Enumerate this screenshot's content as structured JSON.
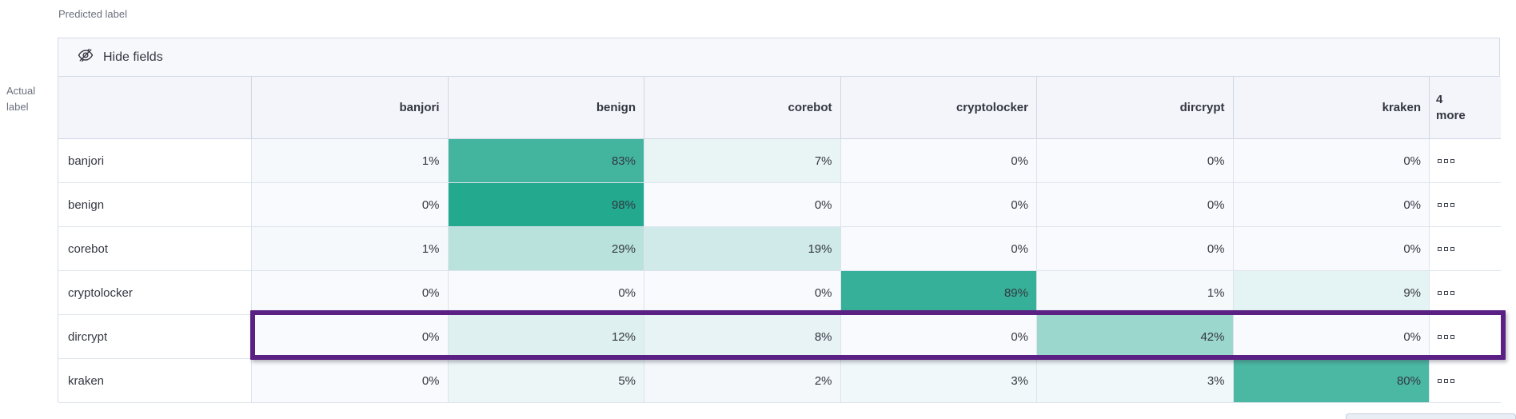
{
  "axis_labels": {
    "predicted": "Predicted label",
    "actual_line1": "Actual",
    "actual_line2": "label"
  },
  "toolbar": {
    "hide_fields_label": "Hide fields"
  },
  "grid": {
    "more_header_line1": "4",
    "more_header_line2": "more"
  },
  "chart_data": {
    "type": "heatmap",
    "title": "",
    "xlabel": "Predicted label",
    "ylabel": "Actual label",
    "x_categories": [
      "banjori",
      "benign",
      "corebot",
      "cryptolocker",
      "dircrypt",
      "kraken"
    ],
    "x_overflow_label": "4 more",
    "y_categories": [
      "banjori",
      "benign",
      "corebot",
      "cryptolocker",
      "dircrypt",
      "kraken"
    ],
    "values_percent": [
      [
        1,
        83,
        7,
        0,
        0,
        0
      ],
      [
        0,
        98,
        0,
        0,
        0,
        0
      ],
      [
        1,
        29,
        19,
        0,
        0,
        0
      ],
      [
        0,
        0,
        0,
        89,
        1,
        9
      ],
      [
        0,
        12,
        8,
        0,
        42,
        0
      ],
      [
        0,
        5,
        2,
        3,
        3,
        80
      ]
    ],
    "value_suffix": "%",
    "highlighted_row": "dircrypt",
    "color_scale": {
      "min_value": 0,
      "max_value": 100,
      "min_color": "#f8fafd",
      "max_color": "#1ea78c"
    }
  },
  "colors": {
    "highlight_border": "#5b2083",
    "grid_border": "#d3dae6",
    "header_bg": "#f3f5fb",
    "toolbar_bg": "#f7f8fc",
    "text_primary": "#343741",
    "text_subdued": "#69707d"
  }
}
